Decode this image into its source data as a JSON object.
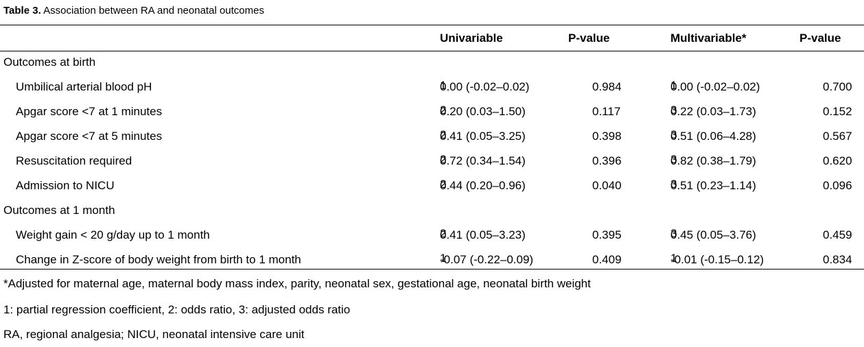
{
  "caption": {
    "label": "Table 3.",
    "text": "Association between RA and neonatal outcomes"
  },
  "headers": [
    "Univariable",
    "P-value",
    "Multivariable*",
    "P-value"
  ],
  "sections": [
    {
      "title": "Outcomes at birth",
      "rows": [
        {
          "label": "Umbilical arterial blood pH",
          "uni": "0.00 (-0.02–0.02)",
          "uni_sup": "1",
          "p1": "0.984",
          "multi": "0.00 (-0.02–0.02)",
          "multi_sup": "1",
          "p2": "0.700"
        },
        {
          "label": "Apgar score <7 at 1 minutes",
          "uni": "0.20 (0.03–1.50)",
          "uni_sup": "2",
          "p1": "0.117",
          "multi": "0.22 (0.03–1.73)",
          "multi_sup": "3",
          "p2": "0.152"
        },
        {
          "label": "Apgar score <7 at 5 minutes",
          "uni": "0.41 (0.05–3.25)",
          "uni_sup": "2",
          "p1": "0.398",
          "multi": "0.51 (0.06–4.28)",
          "multi_sup": "3",
          "p2": "0.567"
        },
        {
          "label": "Resuscitation required",
          "uni": "0.72 (0.34–1.54)",
          "uni_sup": "2",
          "p1": "0.396",
          "multi": "0.82 (0.38–1.79)",
          "multi_sup": "3",
          "p2": "0.620"
        },
        {
          "label": "Admission to NICU",
          "uni": "0.44 (0.20–0.96)",
          "uni_sup": "2",
          "p1": "0.040",
          "multi": "0.51 (0.23–1.14)",
          "multi_sup": "3",
          "p2": "0.096"
        }
      ]
    },
    {
      "title": "Outcomes at 1 month",
      "rows": [
        {
          "label": "Weight gain < 20 g/day up to 1 month",
          "uni": "0.41 (0.05–3.23)",
          "uni_sup": "2",
          "p1": "0.395",
          "multi": "0.45 (0.05–3.76)",
          "multi_sup": "3",
          "p2": "0.459"
        },
        {
          "label": "Change in Z-score of body weight from birth to  1 month",
          "uni": "-0.07 (-0.22–0.09)",
          "uni_sup": "1",
          "p1": "0.409",
          "multi": "-0.01 (-0.15–0.12)",
          "multi_sup": "1",
          "p2": "0.834"
        }
      ]
    }
  ],
  "footnotes": [
    "*Adjusted for maternal age, maternal body mass index, parity, neonatal sex, gestational age, neonatal birth weight",
    "1: partial regression coefficient, 2: odds ratio, 3: adjusted odds ratio",
    "RA, regional analgesia; NICU, neonatal intensive care unit"
  ]
}
